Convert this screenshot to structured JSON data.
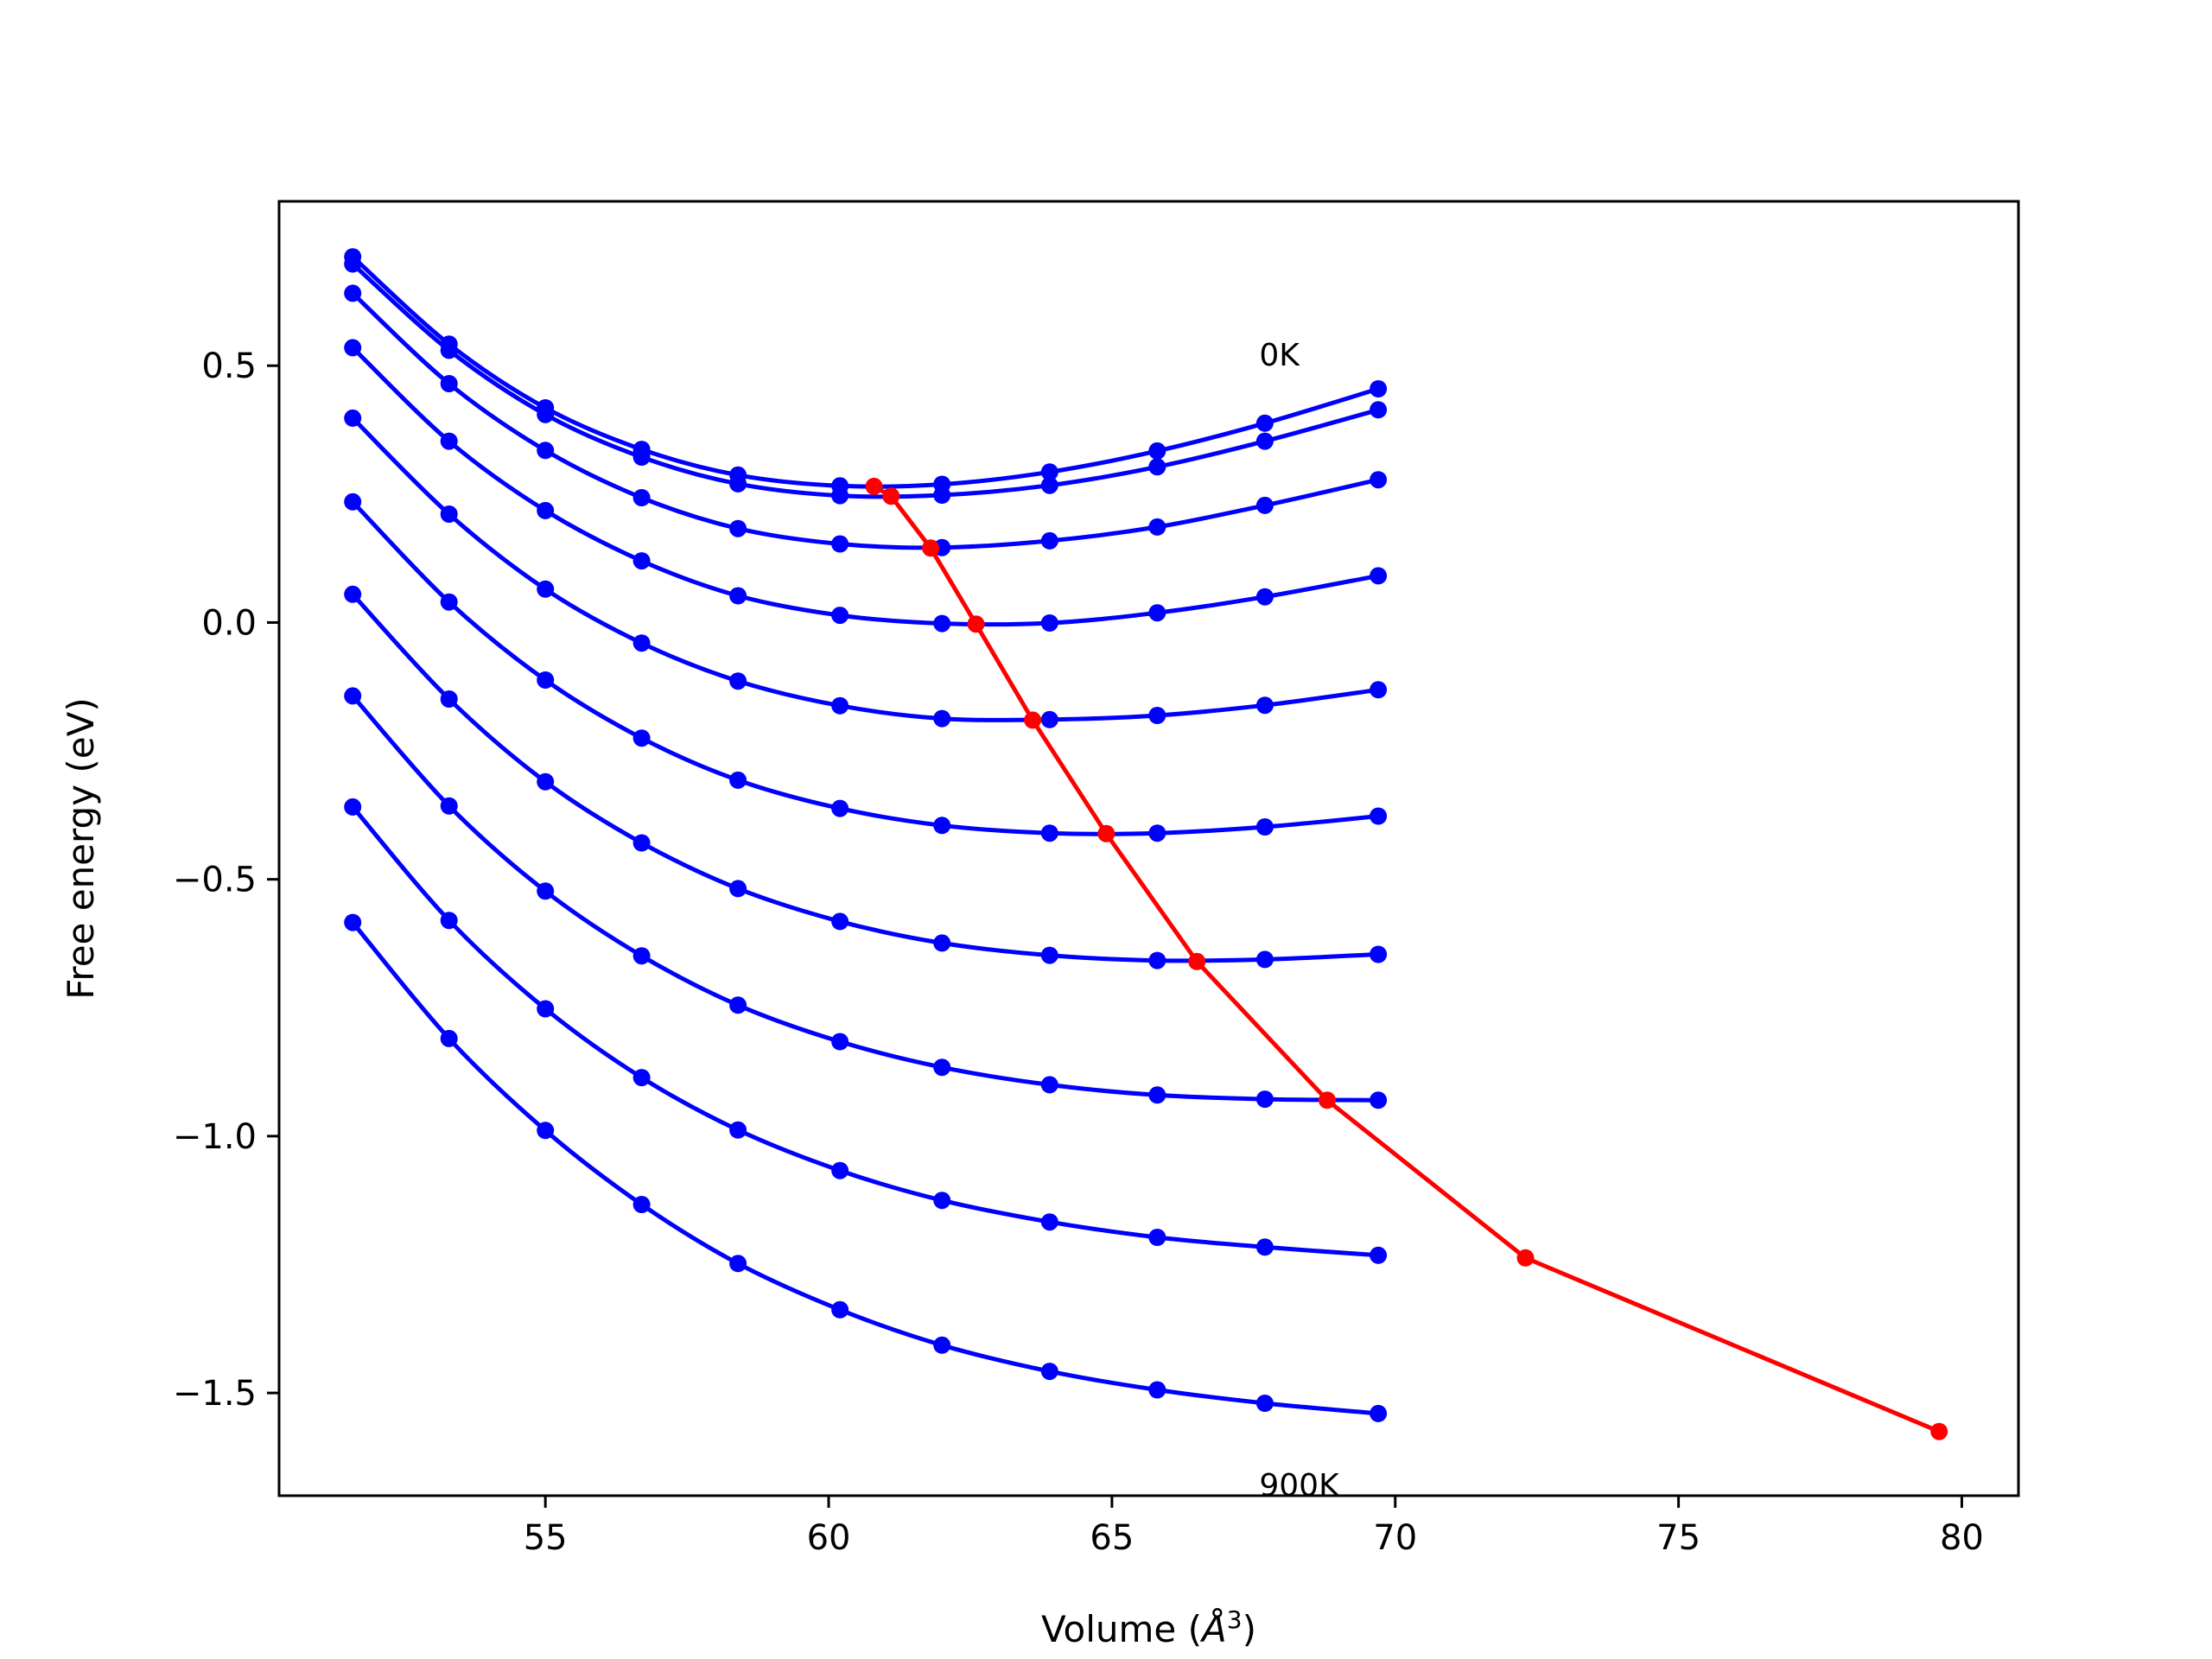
{
  "chart_data": {
    "type": "line",
    "xlabel": "Volume (Å³)",
    "xlabel_main": "Volume (",
    "xlabel_symbol": "Å",
    "xlabel_exp": "3",
    "xlabel_close": ")",
    "ylabel": "Free energy (eV)",
    "xlim": [
      50.3,
      81.0
    ],
    "ylim": [
      -1.7,
      0.82
    ],
    "xticks": [
      55,
      60,
      65,
      70,
      75,
      80
    ],
    "yticks": [
      -1.5,
      -1.0,
      -0.5,
      0.0,
      0.5
    ],
    "xtick_labels": [
      "55",
      "60",
      "65",
      "70",
      "75",
      "80"
    ],
    "ytick_labels": [
      "−1.5",
      "−1.0",
      "−0.5",
      "0.0",
      "0.5"
    ],
    "grid": false,
    "annotations": [
      {
        "text": "0K",
        "x": 67.6,
        "y": 0.5
      },
      {
        "text": "900K",
        "x": 67.6,
        "y": -1.7
      }
    ],
    "colors": {
      "isotherms": "#0000ff",
      "minimum_path": "#ff0000"
    },
    "x": [
      51.6,
      53.3,
      55.0,
      56.7,
      58.4,
      60.2,
      62.0,
      63.9,
      65.8,
      67.7,
      69.7
    ],
    "series": [
      {
        "values": [
          0.712,
          0.542,
          0.418,
          0.337,
          0.287,
          0.266,
          0.269,
          0.293,
          0.334,
          0.388,
          0.455
        ]
      },
      {
        "values": [
          0.698,
          0.53,
          0.405,
          0.322,
          0.27,
          0.247,
          0.248,
          0.267,
          0.303,
          0.353,
          0.414
        ]
      },
      {
        "values": [
          0.641,
          0.465,
          0.335,
          0.243,
          0.183,
          0.153,
          0.146,
          0.159,
          0.186,
          0.228,
          0.278
        ]
      },
      {
        "values": [
          0.535,
          0.353,
          0.218,
          0.12,
          0.052,
          0.014,
          -0.002,
          -0.001,
          0.019,
          0.05,
          0.091
        ]
      },
      {
        "values": [
          0.398,
          0.211,
          0.065,
          -0.04,
          -0.114,
          -0.162,
          -0.187,
          -0.189,
          -0.181,
          -0.161,
          -0.131
        ]
      },
      {
        "values": [
          0.235,
          0.04,
          -0.112,
          -0.225,
          -0.307,
          -0.362,
          -0.395,
          -0.41,
          -0.41,
          -0.398,
          -0.377
        ]
      },
      {
        "values": [
          0.055,
          -0.149,
          -0.31,
          -0.429,
          -0.518,
          -0.582,
          -0.624,
          -0.648,
          -0.658,
          -0.656,
          -0.646
        ]
      },
      {
        "values": [
          -0.143,
          -0.357,
          -0.523,
          -0.649,
          -0.745,
          -0.816,
          -0.866,
          -0.9,
          -0.92,
          -0.928,
          -0.93
        ]
      },
      {
        "values": [
          -0.359,
          -0.58,
          -0.752,
          -0.886,
          -0.988,
          -1.067,
          -1.125,
          -1.167,
          -1.197,
          -1.216,
          -1.232
        ]
      },
      {
        "values": [
          -0.584,
          -0.81,
          -0.989,
          -1.133,
          -1.248,
          -1.338,
          -1.407,
          -1.458,
          -1.494,
          -1.52,
          -1.54
        ]
      }
    ],
    "minimum_path": {
      "x": [
        60.8,
        61.1,
        61.8,
        62.6,
        63.6,
        64.9,
        66.5,
        68.8,
        72.3,
        79.6
      ],
      "y": [
        0.265,
        0.246,
        0.145,
        -0.003,
        -0.19,
        -0.411,
        -0.66,
        -0.93,
        -1.237,
        -1.575
      ]
    }
  }
}
